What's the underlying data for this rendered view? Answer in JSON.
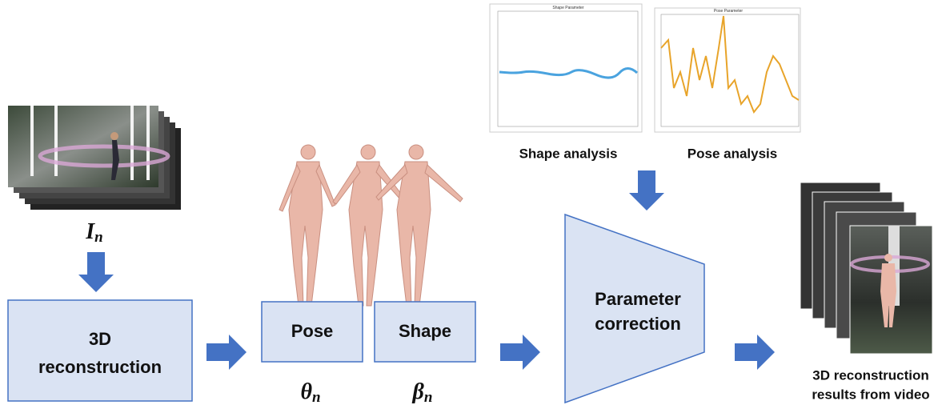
{
  "input": {
    "symbol": "I",
    "subscript": "n"
  },
  "reconstruction": {
    "label": [
      "3D",
      "reconstruction"
    ]
  },
  "pose": {
    "label": "Pose",
    "symbol": "θ",
    "subscript": "n"
  },
  "shape": {
    "label": "Shape",
    "symbol": "β",
    "subscript": "n"
  },
  "analysis": {
    "shape_plot_title": "Shape Parameter",
    "pose_plot_title": "Pose Parameter",
    "shape_caption": "Shape analysis",
    "pose_caption": "Pose analysis"
  },
  "correction": {
    "label": [
      "Parameter",
      "correction"
    ]
  },
  "output": {
    "caption": [
      "3D reconstruction",
      "results from video"
    ]
  }
}
